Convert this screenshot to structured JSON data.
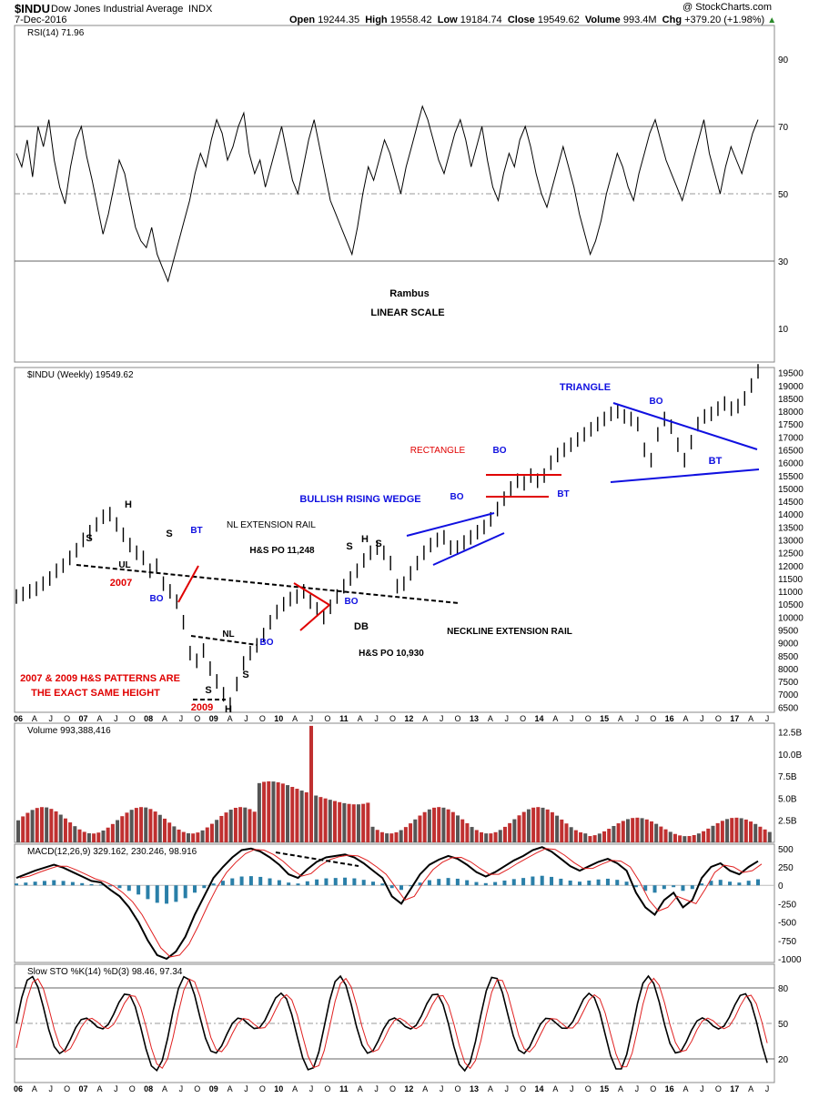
{
  "header": {
    "symbol": "$INDU",
    "name": "Dow Jones Industrial Average",
    "exchange": "INDX",
    "date": "7-Dec-2016",
    "open_label": "Open",
    "open": "19244.35",
    "high_label": "High",
    "high": "19558.42",
    "low_label": "Low",
    "low": "19184.74",
    "close_label": "Close",
    "close": "19549.62",
    "volume_label": "Volume",
    "volume": "993.4M",
    "chg_label": "Chg",
    "chg": "+379.20 (+1.98%)",
    "watermark": "@ StockCharts.com"
  },
  "colors": {
    "price_bar": "#000000",
    "vol_up": "#555555",
    "vol_down": "#c03030",
    "red_annot": "#e00000",
    "blue_annot": "#1010e0",
    "macd_hist": "#2a7fa8",
    "signal": "#e02020",
    "rsi_fill": "#4a7a4a",
    "grid": "#cccccc"
  },
  "x_axis": {
    "labels": [
      "06",
      "A",
      "J",
      "O",
      "07",
      "A",
      "J",
      "O",
      "08",
      "A",
      "J",
      "O",
      "09",
      "A",
      "J",
      "O",
      "10",
      "A",
      "J",
      "O",
      "11",
      "A",
      "J",
      "O",
      "12",
      "A",
      "J",
      "O",
      "13",
      "A",
      "J",
      "O",
      "14",
      "A",
      "J",
      "O",
      "15",
      "A",
      "J",
      "O",
      "16",
      "A",
      "J",
      "O",
      "17",
      "A",
      "J"
    ],
    "bold_labels": [
      "06",
      "07",
      "08",
      "09",
      "10",
      "11",
      "12",
      "13",
      "14",
      "15",
      "16",
      "17"
    ]
  },
  "chart_data": [
    {
      "type": "line",
      "panel": "rsi",
      "title": "RSI(14) 71.96",
      "y_ticks": [
        10,
        30,
        50,
        70,
        90
      ],
      "ylim": [
        0,
        100
      ],
      "ref_lines": [
        30,
        50,
        70
      ],
      "series": [
        {
          "name": "RSI(14)",
          "values": [
            62,
            58,
            66,
            55,
            70,
            64,
            72,
            60,
            52,
            47,
            58,
            66,
            70,
            61,
            54,
            46,
            38,
            44,
            52,
            60,
            56,
            48,
            40,
            36,
            34,
            40,
            32,
            28,
            24,
            30,
            36,
            42,
            48,
            56,
            62,
            58,
            66,
            72,
            68,
            60,
            64,
            70,
            74,
            62,
            56,
            60,
            52,
            58,
            64,
            70,
            62,
            54,
            50,
            58,
            66,
            72,
            64,
            56,
            48,
            44,
            40,
            36,
            32,
            40,
            50,
            58,
            54,
            60,
            66,
            62,
            56,
            50,
            58,
            64,
            70,
            76,
            72,
            66,
            60,
            56,
            62,
            68,
            72,
            66,
            58,
            64,
            70,
            60,
            52,
            48,
            56,
            62,
            58,
            66,
            70,
            64,
            56,
            50,
            46,
            52,
            58,
            64,
            58,
            52,
            44,
            38,
            32,
            36,
            42,
            50,
            56,
            62,
            58,
            52,
            48,
            56,
            62,
            68,
            72,
            66,
            60,
            56,
            52,
            48,
            54,
            60,
            66,
            72,
            62,
            56,
            50,
            58,
            64,
            60,
            56,
            62,
            68,
            72
          ]
        }
      ],
      "annotations": [
        "Rambus",
        "LINEAR SCALE"
      ]
    },
    {
      "type": "line",
      "panel": "price",
      "title": "$INDU (Weekly) 19549.62",
      "y_ticks": [
        6500,
        7000,
        7500,
        8000,
        8500,
        9000,
        9500,
        10000,
        10500,
        11000,
        11500,
        12000,
        12500,
        13000,
        13500,
        14000,
        14500,
        15000,
        15500,
        16000,
        16500,
        17000,
        17500,
        18000,
        18500,
        19000,
        19500
      ],
      "ylim": [
        6300,
        19700
      ],
      "series": [
        {
          "name": "$INDU",
          "values": [
            10800,
            10900,
            11000,
            11100,
            11300,
            11500,
            11800,
            12000,
            12300,
            12600,
            13000,
            13300,
            13600,
            13900,
            14000,
            13600,
            13200,
            12800,
            12500,
            12300,
            11800,
            12000,
            11300,
            11000,
            10600,
            9800,
            8600,
            8300,
            8700,
            8000,
            7500,
            7000,
            6600,
            7400,
            8200,
            8600,
            8900,
            9300,
            9800,
            10200,
            10500,
            10700,
            10800,
            11000,
            10600,
            10300,
            10000,
            10400,
            10800,
            11200,
            11500,
            11800,
            12200,
            12500,
            12700,
            12500,
            12100,
            11200,
            11300,
            11700,
            12100,
            12500,
            12800,
            13000,
            13100,
            12700,
            12700,
            12900,
            13100,
            13300,
            13500,
            13800,
            14200,
            14600,
            15000,
            15300,
            15200,
            15500,
            15300,
            15500,
            16000,
            16300,
            16500,
            16700,
            16900,
            17100,
            17300,
            17500,
            17700,
            17900,
            18000,
            17800,
            17700,
            17500,
            16500,
            16100,
            17100,
            17700,
            17400,
            16700,
            16100,
            16800,
            17500,
            17800,
            17900,
            18100,
            18300,
            18100,
            18200,
            18500,
            19000,
            19550
          ]
        }
      ],
      "annotations": [
        "S",
        "H",
        "S",
        "UL",
        "2007",
        "BO",
        "BT",
        "NL EXTENSION RAIL",
        "H&S PO 11,248",
        "S",
        "H",
        "S",
        "BO",
        "DB",
        "H&S PO 10,930",
        "NECKLINE EXTENSION RAIL",
        "NL",
        "BO",
        "S",
        "S",
        "H",
        "2009",
        "2007 & 2009 H&S PATTERNS ARE",
        "THE EXACT SAME HEIGHT",
        "BULLISH RISING WEDGE",
        "BO",
        "RECTANGLE",
        "BO",
        "BT",
        "TRIANGLE",
        "BO",
        "BT"
      ]
    },
    {
      "type": "bar",
      "panel": "volume",
      "title": "Volume 993,388,416",
      "y_ticks": [
        "2.5B",
        "5.0B",
        "7.5B",
        "10.0B",
        "12.5B"
      ],
      "ylim": [
        0,
        13500000000
      ]
    },
    {
      "type": "line",
      "panel": "macd",
      "title": "MACD(12,26,9) 329.162, 230.246, 98.916",
      "y_ticks": [
        -1000,
        -750,
        -500,
        -250,
        0,
        250,
        500
      ],
      "ylim": [
        -1050,
        560
      ],
      "series": [
        {
          "name": "MACD(12,26,9)",
          "values": [
            100,
            150,
            200,
            240,
            280,
            240,
            180,
            120,
            60,
            40,
            -60,
            -150,
            -300,
            -500,
            -750,
            -950,
            -1000,
            -900,
            -700,
            -400,
            -150,
            100,
            250,
            380,
            480,
            500,
            460,
            380,
            280,
            150,
            100,
            220,
            320,
            380,
            400,
            420,
            380,
            300,
            200,
            100,
            -150,
            -250,
            -50,
            150,
            280,
            350,
            400,
            360,
            280,
            180,
            120,
            180,
            260,
            340,
            400,
            480,
            520,
            460,
            360,
            260,
            200,
            260,
            320,
            360,
            300,
            200,
            -100,
            -300,
            -400,
            -200,
            -100,
            -300,
            -200,
            100,
            250,
            300,
            200,
            150,
            250,
            329
          ]
        }
      ]
    },
    {
      "type": "line",
      "panel": "stochastic",
      "title": "Slow STO %K(14) %D(3) 98.46, 97.34",
      "y_ticks": [
        20,
        50,
        80
      ],
      "ylim": [
        0,
        100
      ],
      "ref_lines": [
        20,
        50,
        80
      ]
    }
  ]
}
